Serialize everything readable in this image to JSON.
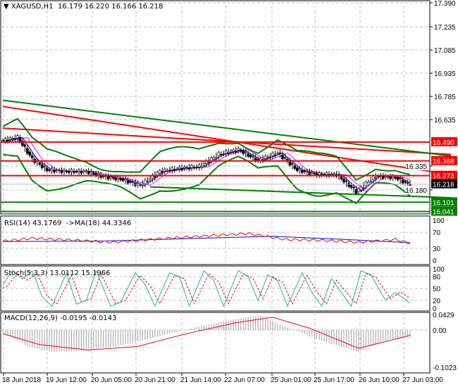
{
  "header": {
    "symbol": "XAGUSD,H1",
    "ohlc": "16.179 16.220 16.166 16.218"
  },
  "price_axis": [
    "17.390",
    "17.235",
    "17.085",
    "16.935",
    "16.785",
    "16.635",
    "16.335",
    "16.180"
  ],
  "levels": [
    {
      "label": "16.490",
      "value": 16.49,
      "color": "#ff0000"
    },
    {
      "label": "16.368",
      "value": 16.368,
      "color": "#ff0000"
    },
    {
      "label": "16.273",
      "value": 16.273,
      "color": "#ff0000"
    },
    {
      "label": "16.218",
      "value": 16.218,
      "color": "#000000"
    },
    {
      "label": "16.101",
      "value": 16.101,
      "color": "#008000"
    },
    {
      "label": "16.041",
      "value": 16.041,
      "color": "#008000"
    }
  ],
  "rsi": {
    "title": "RSI(14) 43.1769  ->MA(18) 44.3346",
    "axis": [
      "100",
      "70",
      "30",
      "0"
    ]
  },
  "stoch": {
    "title": "Stoch(5,3,3) 13.0112 15.1966",
    "axis": [
      "100",
      "80",
      "50",
      "20",
      "0"
    ]
  },
  "macd": {
    "title": "MACD(12,26,9) -0.0195 -0.0143",
    "axis": [
      "0.0429",
      "0.00",
      "-0.1023"
    ]
  },
  "time_axis": [
    "18 Jun 2018",
    "19 Jun 12:00",
    "20 Jun 05:00",
    "20 Jun 21:00",
    "21 Jun 14:00",
    "22 Jun 07:00",
    "25 Jun 01:00",
    "25 Jun 17:00",
    "26 Jun 10:00",
    "27 Jun 03:00"
  ],
  "chart_data": {
    "type": "line",
    "title": "XAGUSD,H1",
    "ylim": [
      16.041,
      17.39
    ],
    "close_keypoints": [
      [
        0,
        16.5
      ],
      [
        6,
        16.52
      ],
      [
        12,
        16.38
      ],
      [
        18,
        16.31
      ],
      [
        26,
        16.3
      ],
      [
        34,
        16.3
      ],
      [
        40,
        16.27
      ],
      [
        48,
        16.25
      ],
      [
        56,
        16.21
      ],
      [
        64,
        16.3
      ],
      [
        72,
        16.32
      ],
      [
        80,
        16.33
      ],
      [
        88,
        16.41
      ],
      [
        96,
        16.44
      ],
      [
        104,
        16.37
      ],
      [
        112,
        16.42
      ],
      [
        120,
        16.31
      ],
      [
        128,
        16.28
      ],
      [
        136,
        16.28
      ],
      [
        144,
        16.17
      ],
      [
        152,
        16.27
      ],
      [
        160,
        16.26
      ],
      [
        166,
        16.21
      ]
    ],
    "trendlines": [
      {
        "color": "#ff0000",
        "from": [
          0,
          16.72
        ],
        "to": [
          174,
          16.28
        ]
      },
      {
        "color": "#ff0000",
        "from": [
          0,
          16.58
        ],
        "to": [
          174,
          16.41
        ]
      },
      {
        "color": "#008000",
        "from": [
          0,
          16.76
        ],
        "to": [
          174,
          16.4
        ]
      },
      {
        "color": "#008000",
        "from": [
          60,
          16.2
        ],
        "to": [
          174,
          16.13
        ]
      }
    ],
    "rsi_keypoints": [
      [
        0,
        48
      ],
      [
        12,
        55
      ],
      [
        30,
        50
      ],
      [
        45,
        45
      ],
      [
        60,
        52
      ],
      [
        80,
        60
      ],
      [
        100,
        67
      ],
      [
        115,
        52
      ],
      [
        130,
        50
      ],
      [
        145,
        45
      ],
      [
        160,
        52
      ],
      [
        166,
        43
      ]
    ],
    "rsi_ma_keypoints": [
      [
        0,
        47
      ],
      [
        40,
        48
      ],
      [
        80,
        55
      ],
      [
        110,
        60
      ],
      [
        140,
        52
      ],
      [
        166,
        44
      ]
    ],
    "stoch_keypoints": [
      [
        0,
        60
      ],
      [
        4,
        95
      ],
      [
        8,
        75
      ],
      [
        12,
        95
      ],
      [
        16,
        30
      ],
      [
        20,
        5
      ],
      [
        26,
        90
      ],
      [
        30,
        10
      ],
      [
        34,
        20
      ],
      [
        38,
        95
      ],
      [
        44,
        5
      ],
      [
        48,
        15
      ],
      [
        54,
        90
      ],
      [
        58,
        60
      ],
      [
        62,
        5
      ],
      [
        68,
        90
      ],
      [
        72,
        80
      ],
      [
        76,
        5
      ],
      [
        82,
        95
      ],
      [
        86,
        70
      ],
      [
        90,
        5
      ],
      [
        96,
        95
      ],
      [
        100,
        80
      ],
      [
        104,
        20
      ],
      [
        108,
        85
      ],
      [
        112,
        70
      ],
      [
        116,
        5
      ],
      [
        122,
        90
      ],
      [
        126,
        40
      ],
      [
        130,
        5
      ],
      [
        134,
        75
      ],
      [
        138,
        40
      ],
      [
        142,
        5
      ],
      [
        146,
        95
      ],
      [
        150,
        85
      ],
      [
        156,
        20
      ],
      [
        160,
        40
      ],
      [
        166,
        13
      ]
    ],
    "macd_keypoints": [
      [
        0,
        -0.005
      ],
      [
        10,
        -0.045
      ],
      [
        20,
        -0.06
      ],
      [
        35,
        -0.055
      ],
      [
        50,
        -0.04
      ],
      [
        65,
        -0.015
      ],
      [
        80,
        0.01
      ],
      [
        95,
        0.03
      ],
      [
        105,
        0.04
      ],
      [
        115,
        0.01
      ],
      [
        130,
        -0.03
      ],
      [
        145,
        -0.06
      ],
      [
        155,
        -0.03
      ],
      [
        166,
        -0.0195
      ]
    ],
    "macd_signal_keypoints": [
      [
        0,
        -0.01
      ],
      [
        15,
        -0.04
      ],
      [
        35,
        -0.055
      ],
      [
        55,
        -0.045
      ],
      [
        75,
        -0.01
      ],
      [
        95,
        0.02
      ],
      [
        110,
        0.035
      ],
      [
        125,
        0.005
      ],
      [
        145,
        -0.05
      ],
      [
        160,
        -0.025
      ],
      [
        166,
        -0.0143
      ]
    ]
  }
}
